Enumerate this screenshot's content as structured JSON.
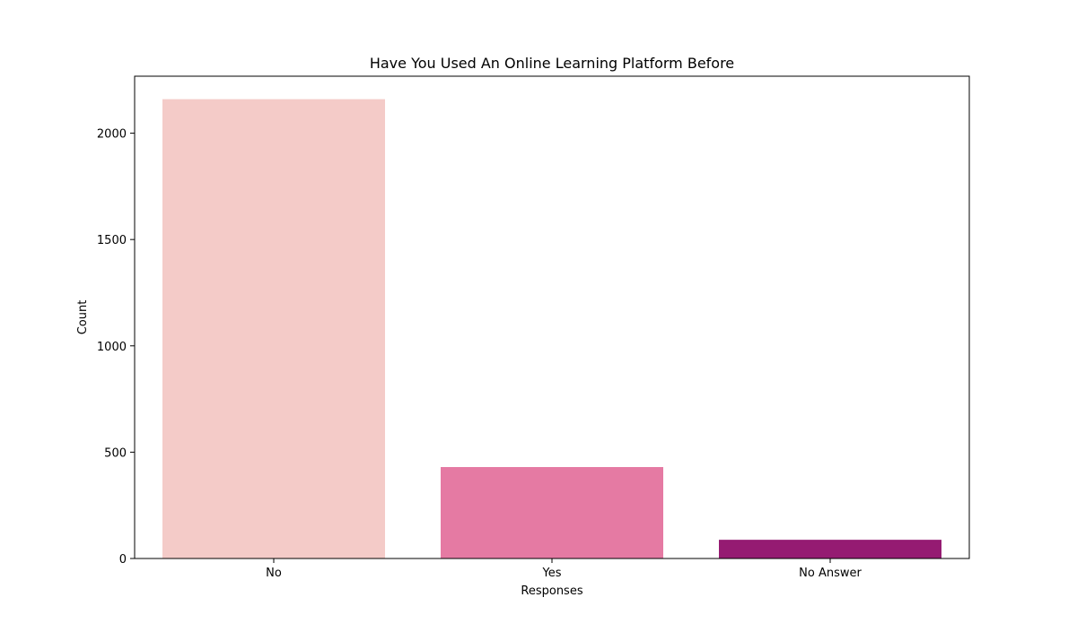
{
  "chart_data": {
    "type": "bar",
    "title": "Have You Used An Online Learning Platform Before",
    "xlabel": "Responses",
    "ylabel": "Count",
    "categories": [
      "No",
      "Yes",
      "No Answer"
    ],
    "values": [
      2160,
      430,
      88
    ],
    "colors": [
      "#f4cbc8",
      "#e57aa3",
      "#951b72"
    ],
    "ylim": [
      0,
      2268
    ],
    "yticks": [
      0,
      500,
      1000,
      1500,
      2000
    ],
    "grid": false,
    "legend": "none"
  }
}
